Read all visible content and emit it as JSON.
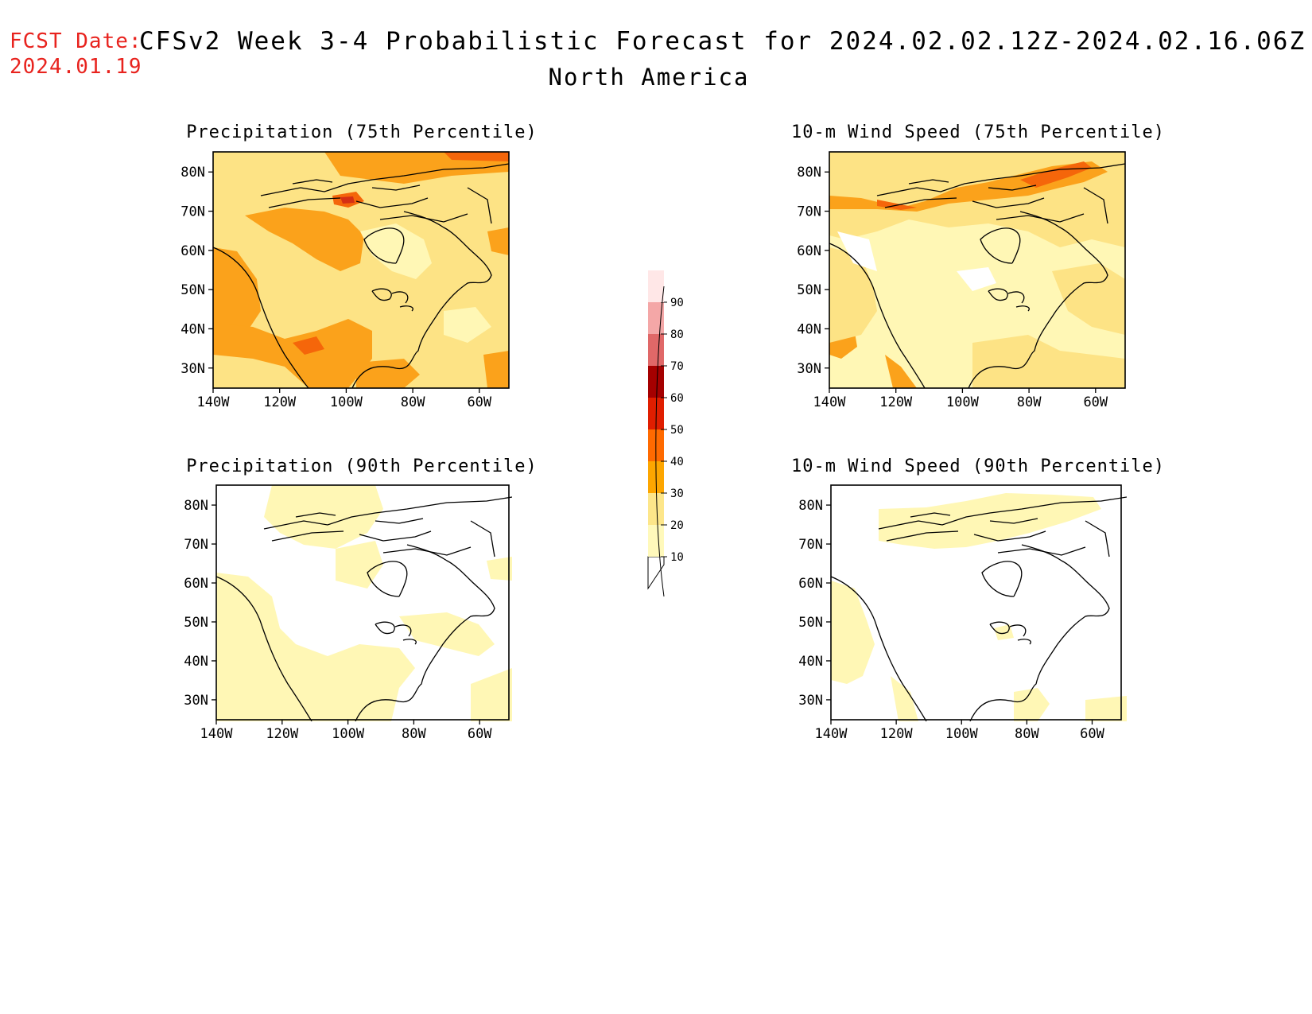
{
  "header": {
    "fcst_label": "FCST Date:",
    "fcst_date": "2024.01.19",
    "title": "CFSv2 Week 3-4 Probabilistic Forecast for 2024.02.02.12Z-2024.02.16.06Z",
    "region": "North America"
  },
  "panels": [
    {
      "id": "precip75",
      "title": "Precipitation (75th Percentile)"
    },
    {
      "id": "precip90",
      "title": "Precipitation (90th Percentile)"
    },
    {
      "id": "wind75",
      "title": "10-m Wind Speed (75th Percentile)"
    },
    {
      "id": "wind90",
      "title": "10-m Wind Speed (90th Percentile)"
    }
  ],
  "axes": {
    "lat_labels": [
      "80N",
      "70N",
      "60N",
      "50N",
      "40N",
      "30N"
    ],
    "lon_labels": [
      "140W",
      "120W",
      "100W",
      "80W",
      "60W"
    ]
  },
  "colorbar": {
    "levels": [
      10,
      20,
      30,
      40,
      50,
      60,
      70,
      80,
      90
    ],
    "colors": [
      "#fff9bb",
      "#fde68a",
      "#fda600",
      "#ff6a00",
      "#e01e00",
      "#a50000",
      "#e06868",
      "#f4a7a7",
      "#ffe7e7"
    ]
  },
  "map_colors": {
    "light_yellow": "#fff7b5",
    "yellow": "#fde385",
    "orange": "#fba21b",
    "dark_orange": "#f5660a",
    "red": "#d52f14"
  }
}
